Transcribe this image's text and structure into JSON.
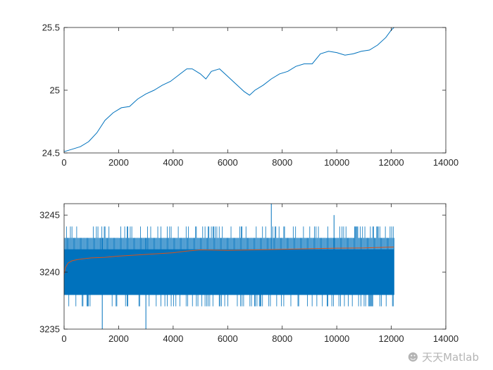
{
  "chart_data": [
    {
      "type": "line",
      "title": "",
      "xlabel": "",
      "ylabel": "",
      "xlim": [
        0,
        14000
      ],
      "ylim": [
        24.5,
        25.5
      ],
      "xticks": [
        "0",
        "2000",
        "4000",
        "6000",
        "8000",
        "10000",
        "12000",
        "14000"
      ],
      "yticks": [
        "24.5",
        "25",
        "25.5"
      ],
      "grid": false,
      "series": [
        {
          "color": "#0072bd",
          "x": [
            0,
            300,
            600,
            900,
            1200,
            1500,
            1800,
            2100,
            2400,
            2700,
            3000,
            3300,
            3600,
            3900,
            4200,
            4500,
            4700,
            5000,
            5200,
            5400,
            5700,
            6000,
            6300,
            6600,
            6800,
            7000,
            7300,
            7600,
            7900,
            8200,
            8500,
            8800,
            9100,
            9400,
            9700,
            10000,
            10300,
            10600,
            10900,
            11200,
            11500,
            11800,
            12000,
            12100
          ],
          "y": [
            24.51,
            24.53,
            24.55,
            24.59,
            24.66,
            24.76,
            24.82,
            24.86,
            24.87,
            24.93,
            24.97,
            25.0,
            25.04,
            25.07,
            25.12,
            25.17,
            25.17,
            25.13,
            25.09,
            25.15,
            25.17,
            25.11,
            25.05,
            24.99,
            24.96,
            25.0,
            25.04,
            25.09,
            25.13,
            25.15,
            25.19,
            25.21,
            25.21,
            25.29,
            25.31,
            25.3,
            25.28,
            25.29,
            25.31,
            25.32,
            25.36,
            25.42,
            25.48,
            25.5
          ]
        }
      ]
    },
    {
      "type": "line",
      "title": "",
      "xlabel": "",
      "ylabel": "",
      "xlim": [
        0,
        14000
      ],
      "ylim": [
        3235,
        3246
      ],
      "xticks": [
        "0",
        "2000",
        "4000",
        "6000",
        "8000",
        "10000",
        "12000",
        "14000"
      ],
      "yticks": [
        "3235",
        "3240",
        "3245"
      ],
      "grid": false,
      "noise_band": {
        "color": "#0072bd",
        "x_range": [
          0,
          12100
        ],
        "dense_low": 3238,
        "dense_high": 3243,
        "outer_low": 3237,
        "outer_high": 3244
      },
      "spikes": [
        {
          "x": 1400,
          "low": 3235,
          "high": 3243
        },
        {
          "x": 3000,
          "low": 3235,
          "high": 3243
        },
        {
          "x": 7600,
          "low": 3238,
          "high": 3246
        },
        {
          "x": 9900,
          "low": 3238,
          "high": 3245
        }
      ],
      "series": [
        {
          "color": "#d95319",
          "x": [
            0,
            50,
            150,
            300,
            500,
            800,
            1000,
            1500,
            2000,
            3000,
            4000,
            4500,
            5000,
            6000,
            7000,
            8000,
            9000,
            10000,
            11000,
            12100
          ],
          "y": [
            3239.8,
            3240.4,
            3240.8,
            3241.0,
            3241.1,
            3241.2,
            3241.25,
            3241.3,
            3241.4,
            3241.55,
            3241.7,
            3241.85,
            3241.95,
            3241.9,
            3241.95,
            3242.0,
            3242.05,
            3242.1,
            3242.12,
            3242.2
          ]
        }
      ]
    }
  ],
  "watermark": "天天Matlab"
}
